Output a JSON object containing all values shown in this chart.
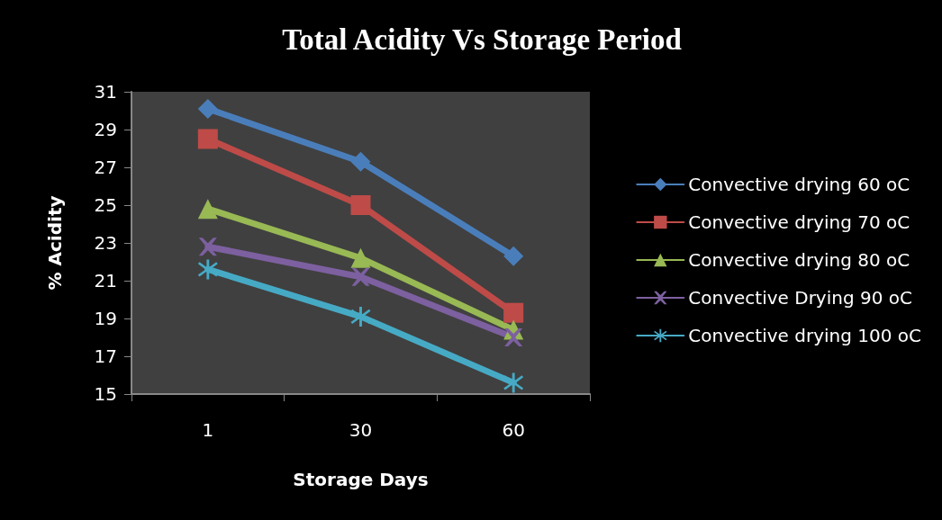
{
  "chart_data": {
    "type": "line",
    "title": "Total Acidity Vs Storage Period",
    "xlabel": "Storage Days",
    "ylabel": "% Acidity",
    "categories": [
      "1",
      "30",
      "60"
    ],
    "ylim": [
      15,
      31
    ],
    "yticks": [
      15,
      17,
      19,
      21,
      23,
      25,
      27,
      29,
      31
    ],
    "grid": false,
    "legend": "right",
    "series": [
      {
        "name": "Convective drying 60 oC",
        "color": "#4a7ebb",
        "marker": "diamond",
        "values": [
          30.1,
          27.3,
          22.3
        ]
      },
      {
        "name": "Convective drying 70 oC",
        "color": "#be4b48",
        "marker": "square",
        "values": [
          28.5,
          25.0,
          19.3
        ]
      },
      {
        "name": "Convective drying 80 oC",
        "color": "#98b954",
        "marker": "triangle",
        "values": [
          24.8,
          22.2,
          18.4
        ]
      },
      {
        "name": "Convective Drying 90 oC",
        "color": "#7d60a0",
        "marker": "cross",
        "values": [
          22.8,
          21.2,
          18.0
        ]
      },
      {
        "name": "Convective drying 100 oC",
        "color": "#46aac5",
        "marker": "star",
        "values": [
          21.6,
          19.1,
          15.6
        ]
      }
    ]
  }
}
